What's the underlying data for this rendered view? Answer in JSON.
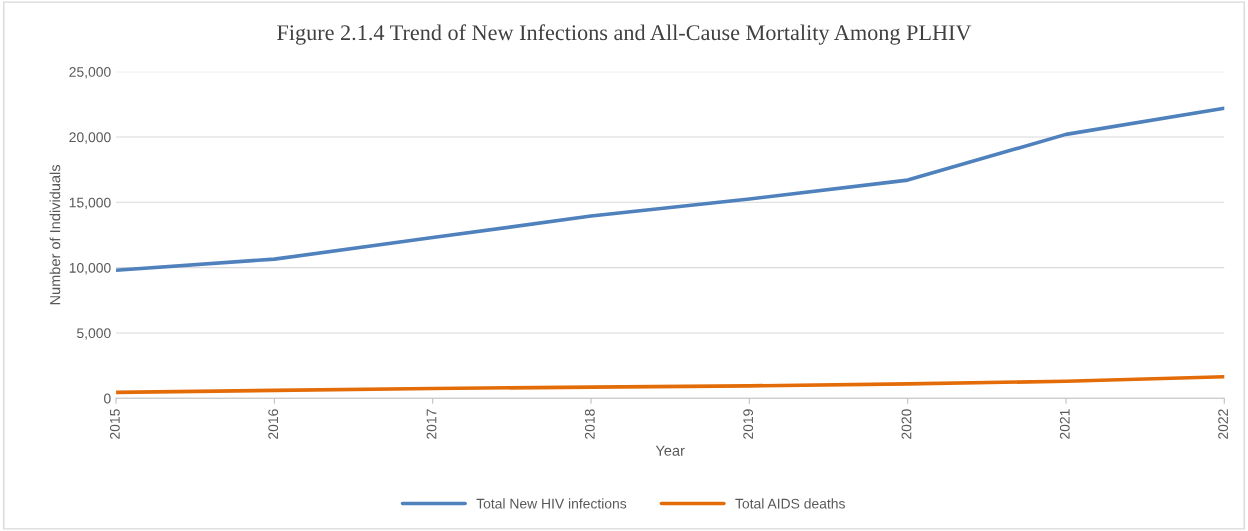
{
  "chart_data": {
    "type": "line",
    "title": "Figure 2.1.4 Trend of New Infections and All-Cause Mortality Among PLHIV",
    "xlabel": "Year",
    "ylabel": "Number of Individuals",
    "categories": [
      "2015",
      "2016",
      "2017",
      "2018",
      "2019",
      "2020",
      "2021",
      "2022"
    ],
    "series": [
      {
        "name": "Total New HIV infections",
        "color": "#4f81bd",
        "values": [
          9800,
          10650,
          12300,
          13950,
          15250,
          16700,
          20200,
          22200
        ]
      },
      {
        "name": "Total AIDS deaths",
        "color": "#e36c09",
        "values": [
          450,
          600,
          750,
          850,
          950,
          1100,
          1300,
          1650
        ]
      }
    ],
    "ylim": [
      0,
      25000
    ],
    "yticks": [
      {
        "value": 0,
        "label": "0"
      },
      {
        "value": 5000,
        "label": "5,000"
      },
      {
        "value": 10000,
        "label": "10,000"
      },
      {
        "value": 15000,
        "label": "15,000"
      },
      {
        "value": 20000,
        "label": "20,000"
      },
      {
        "value": 25000,
        "label": "25,000"
      }
    ],
    "grid": "y",
    "legend": "bottom",
    "marker": "none",
    "line_style": "solid"
  }
}
